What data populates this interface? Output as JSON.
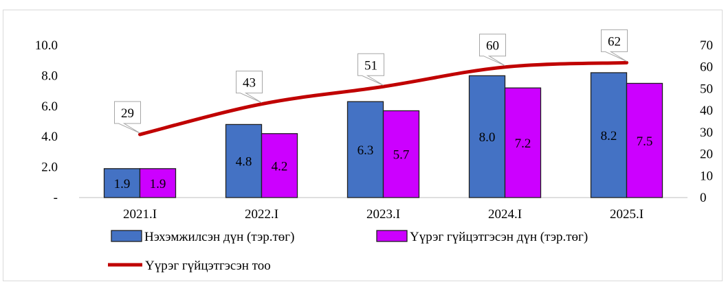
{
  "chart_data": {
    "type": "bar",
    "categories": [
      "2021.I",
      "2022.I",
      "2023.I",
      "2024.I",
      "2025.I"
    ],
    "series": [
      {
        "name": "Нэхэмжилсэн дүн (тэр.төг)",
        "type": "bar",
        "axis": "left",
        "color": "#4472C4",
        "values": [
          1.9,
          4.8,
          6.3,
          8.0,
          8.2
        ],
        "labels": [
          "1.9",
          "4.8",
          "6.3",
          "8.0",
          "8.2"
        ]
      },
      {
        "name": "Үүрэг гүйцэтгэсэн дүн (тэр.төг)",
        "type": "bar",
        "axis": "left",
        "color": "#CC00FF",
        "values": [
          1.9,
          4.2,
          5.7,
          7.2,
          7.5
        ],
        "labels": [
          "1.9",
          "4.2",
          "5.7",
          "7.2",
          "7.5"
        ]
      },
      {
        "name": "Үүрэг гүйцэтгэсэн тоо",
        "type": "line",
        "axis": "right",
        "color": "#C00000",
        "values": [
          29,
          43,
          51,
          60,
          62
        ],
        "labels": [
          "29",
          "43",
          "51",
          "60",
          "62"
        ]
      }
    ],
    "y_left": {
      "ylim": [
        0,
        10
      ],
      "ticks": [
        "-",
        "2.0",
        "4.0",
        "6.0",
        "8.0",
        "10.0"
      ]
    },
    "y_right": {
      "ylim": [
        0,
        70
      ],
      "ticks": [
        "0",
        "10",
        "20",
        "30",
        "40",
        "50",
        "60",
        "70"
      ]
    },
    "grid": false,
    "legend_position": "bottom"
  }
}
